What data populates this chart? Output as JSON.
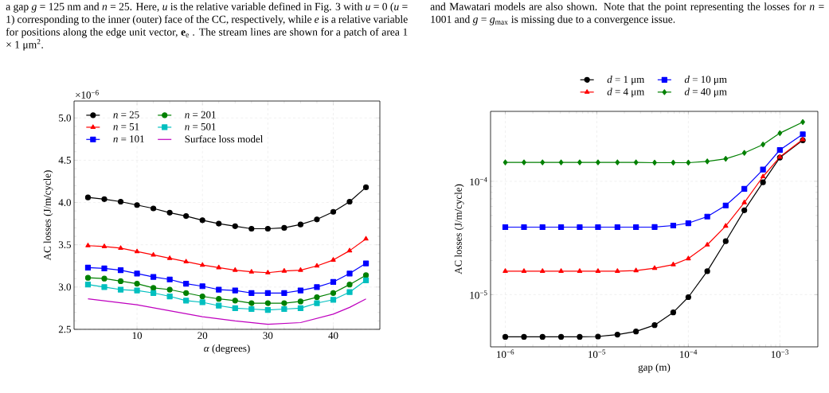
{
  "chart_data": [
    {
      "type": "line",
      "xlabel": "*α* (degrees)",
      "ylabel": "AC losses (J/m/cycle)",
      "annotations": [
        "a gap *g* = 125 nm and *n* = 25. Here, *u* is the relative variable defined in Fig. 3 with *u* = 0 (*u* = 1) corresponding to the inner (outer) face of the CC, respectively, while *e* is a relative variable for positions along the edge unit vector, **e**$_{e}$ . The stream lines are shown for a patch of area 1 × 1 μm$^{2}$.",
        "×10$^{−6}$"
      ],
      "x": [
        2.5,
        5,
        7.5,
        10,
        12.5,
        15,
        17.5,
        20,
        22.5,
        25,
        27.5,
        30,
        32.5,
        35,
        37.5,
        40,
        42.5,
        45
      ],
      "series": [
        {
          "name": "*n* = 25",
          "color": "#000000",
          "marker": "circle",
          "values": [
            4.06,
            4.04,
            4.01,
            3.97,
            3.93,
            3.88,
            3.84,
            3.79,
            3.75,
            3.72,
            3.69,
            3.69,
            3.7,
            3.74,
            3.8,
            3.89,
            4.01,
            4.18
          ]
        },
        {
          "name": "*n* = 51",
          "color": "#ff0000",
          "marker": "triangle",
          "values": [
            3.49,
            3.48,
            3.46,
            3.42,
            3.38,
            3.34,
            3.3,
            3.26,
            3.23,
            3.2,
            3.18,
            3.17,
            3.19,
            3.2,
            3.25,
            3.32,
            3.43,
            3.57
          ]
        },
        {
          "name": "*n* = 101",
          "color": "#0000ff",
          "marker": "square",
          "values": [
            3.23,
            3.22,
            3.2,
            3.16,
            3.12,
            3.09,
            3.04,
            3.01,
            2.97,
            2.96,
            2.93,
            2.93,
            2.93,
            2.96,
            3.0,
            3.06,
            3.16,
            3.28
          ]
        },
        {
          "name": "*n* = 201",
          "color": "#008000",
          "marker": "circle",
          "values": [
            3.11,
            3.1,
            3.07,
            3.04,
            2.99,
            2.97,
            2.93,
            2.89,
            2.86,
            2.84,
            2.81,
            2.81,
            2.81,
            2.83,
            2.88,
            2.93,
            3.03,
            3.14
          ]
        },
        {
          "name": "*n* = 501",
          "color": "#00bfbf",
          "marker": "square",
          "values": [
            3.03,
            3.0,
            2.97,
            2.96,
            2.93,
            2.89,
            2.84,
            2.82,
            2.78,
            2.75,
            2.74,
            2.73,
            2.74,
            2.75,
            2.81,
            2.85,
            2.94,
            3.08
          ]
        },
        {
          "name": "Surface loss model",
          "color": "#bf00bf",
          "marker": "none",
          "x": [
            2.5,
            10,
            20,
            25,
            30,
            35,
            40,
            42.5,
            45
          ],
          "values": [
            2.86,
            2.79,
            2.65,
            2.6,
            2.56,
            2.58,
            2.68,
            2.76,
            2.86
          ]
        }
      ],
      "xlim": [
        0.375,
        47.125
      ],
      "ylim": [
        2.5,
        5.2
      ],
      "xticks": [
        10,
        20,
        30,
        40
      ],
      "yticks": [
        2.5,
        {
          "value": 3.0,
          "label": "3.0"
        },
        3.5,
        {
          "value": 4.0,
          "label": "4.0"
        },
        4.5,
        {
          "value": 5.0,
          "label": "5.0"
        }
      ],
      "grid": true,
      "legend": "top left",
      "line_style": "solid"
    },
    {
      "type": "line",
      "xlabel": "gap (m)",
      "ylabel": "AC losses (J/m/cycle)",
      "annotations": [
        "and Mawatari models are also shown. Note that the point representing the losses for *n* = 1001 and *g* = *g*$_{max}$ is missing due to a convergence issue."
      ],
      "x": [
        1e-06,
        1.6e-06,
        2.55e-06,
        4.07e-06,
        6.5e-06,
        1.03e-05,
        1.68e-05,
        2.68e-05,
        4.28e-05,
        6.84e-05,
        0.0001,
        0.000161,
        0.000256,
        0.000409,
        0.000654,
        0.001,
        0.00178
      ],
      "series": [
        {
          "name": "*d* = 1 μm",
          "color": "#000000",
          "marker": "circle",
          "values": [
            4.24e-06,
            4.24e-06,
            4.24e-06,
            4.24e-06,
            4.24e-06,
            4.27e-06,
            4.44e-06,
            4.73e-06,
            5.38e-06,
            6.97e-06,
            9.5e-06,
            1.61e-05,
            2.96e-05,
            5.55e-05,
            9.8e-05,
            0.000162,
            0.00023
          ]
        },
        {
          "name": "*d* = 4 μm",
          "color": "#ff0000",
          "marker": "triangle",
          "values": [
            1.61e-05,
            1.61e-05,
            1.61e-05,
            1.61e-05,
            1.61e-05,
            1.61e-05,
            1.61e-05,
            1.63e-05,
            1.71e-05,
            1.84e-05,
            2.08e-05,
            2.75e-05,
            4.03e-05,
            6.49e-05,
            0.00011,
            0.000164,
            0.000234
          ]
        },
        {
          "name": "*d* = 10 μm",
          "color": "#0000ff",
          "marker": "square",
          "values": [
            3.94e-05,
            3.94e-05,
            3.94e-05,
            3.94e-05,
            3.94e-05,
            3.94e-05,
            3.94e-05,
            3.94e-05,
            3.95e-05,
            4.07e-05,
            4.27e-05,
            4.88e-05,
            6.12e-05,
            8.57e-05,
            0.000127,
            0.000189,
            0.00026
          ]
        },
        {
          "name": "*d* = 40 μm",
          "color": "#008000",
          "marker": "diamond",
          "values": [
            0.000147,
            0.000147,
            0.000147,
            0.000147,
            0.000147,
            0.000147,
            0.000147,
            0.000147,
            0.000146,
            0.000146,
            0.000146,
            0.00015,
            0.000158,
            0.000178,
            0.000211,
            0.000266,
            0.000333
          ]
        }
      ],
      "xlim": [
        6.9e-07,
        0.0026
      ],
      "ylim": [
        3.46e-06,
        0.000414
      ],
      "xticks": [
        {
          "value": 1e-06,
          "label": "10$^{−6}$"
        },
        {
          "value": 1e-05,
          "label": "10$^{−5}$"
        },
        {
          "value": 0.0001,
          "label": "10$^{−4}$"
        },
        {
          "value": 0.001,
          "label": "10$^{−3}$"
        }
      ],
      "yticks": [
        {
          "value": 1e-05,
          "label": "10$^{−5}$"
        },
        {
          "value": 0.0001,
          "label": "10$^{−4}$"
        }
      ],
      "log": "xy",
      "grid": true,
      "legend": "top",
      "line_style": "solid"
    }
  ]
}
